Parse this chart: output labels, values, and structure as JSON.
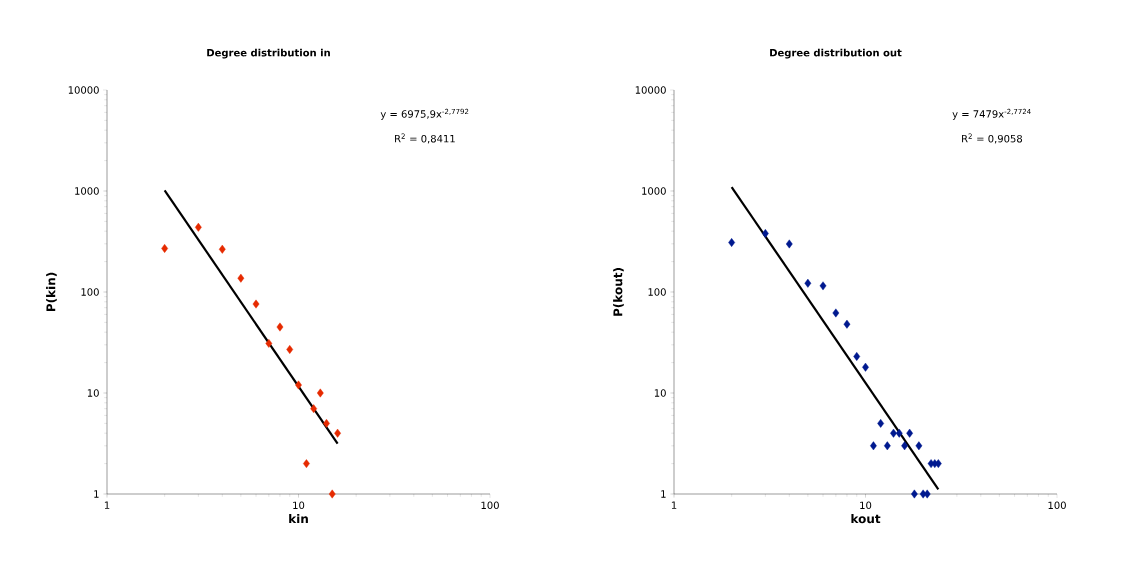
{
  "chart_data": [
    {
      "type": "scatter",
      "title": "Degree distribution in",
      "xlabel": "kin",
      "ylabel": "P(kin)",
      "log": "xy",
      "xlim": [
        1,
        100
      ],
      "ylim": [
        1,
        10000
      ],
      "xticks": [
        1,
        10,
        100
      ],
      "yticks": [
        1,
        10,
        100,
        1000,
        10000
      ],
      "annotations": [
        "y = 6975,9x$^{-2,7792}$",
        "R$^{2}$ = 0,8411"
      ],
      "series": [
        {
          "color": "#e62a00",
          "marker": "diamond",
          "x": [
            2,
            3,
            4,
            5,
            6,
            7,
            8,
            9,
            10,
            11,
            12,
            13,
            14,
            15,
            16
          ],
          "values": [
            270,
            437,
            265,
            137,
            76,
            31,
            45,
            27,
            12,
            2,
            7,
            10,
            5,
            1,
            4
          ]
        },
        {
          "type": "line",
          "color": "#000000",
          "x": [
            2,
            16
          ],
          "values": [
            1016,
            3.15
          ]
        }
      ]
    },
    {
      "type": "scatter",
      "title": "Degree distribution out",
      "xlabel": "kout",
      "ylabel": "P(kout)",
      "log": "xy",
      "xlim": [
        1,
        100
      ],
      "ylim": [
        1,
        10000
      ],
      "xticks": [
        1,
        10,
        100
      ],
      "yticks": [
        1,
        10,
        100,
        1000,
        10000
      ],
      "annotations": [
        "y = 7479x$^{-2,7724}$",
        "R$^{2}$ = 0,9058"
      ],
      "series": [
        {
          "color": "#00198f",
          "marker": "diamond",
          "x": [
            2,
            3,
            4,
            5,
            6,
            7,
            8,
            9,
            10,
            11,
            12,
            13,
            14,
            15,
            16,
            17,
            18,
            19,
            20,
            21,
            22,
            23,
            24
          ],
          "values": [
            309,
            380,
            299,
            122,
            115,
            62,
            48,
            23,
            18,
            3,
            5,
            3,
            4,
            4,
            3,
            4,
            1,
            3,
            1,
            1,
            2,
            2,
            2
          ]
        },
        {
          "type": "line",
          "color": "#000000",
          "x": [
            2,
            24
          ],
          "values": [
            1095,
            1.11
          ]
        }
      ]
    }
  ]
}
